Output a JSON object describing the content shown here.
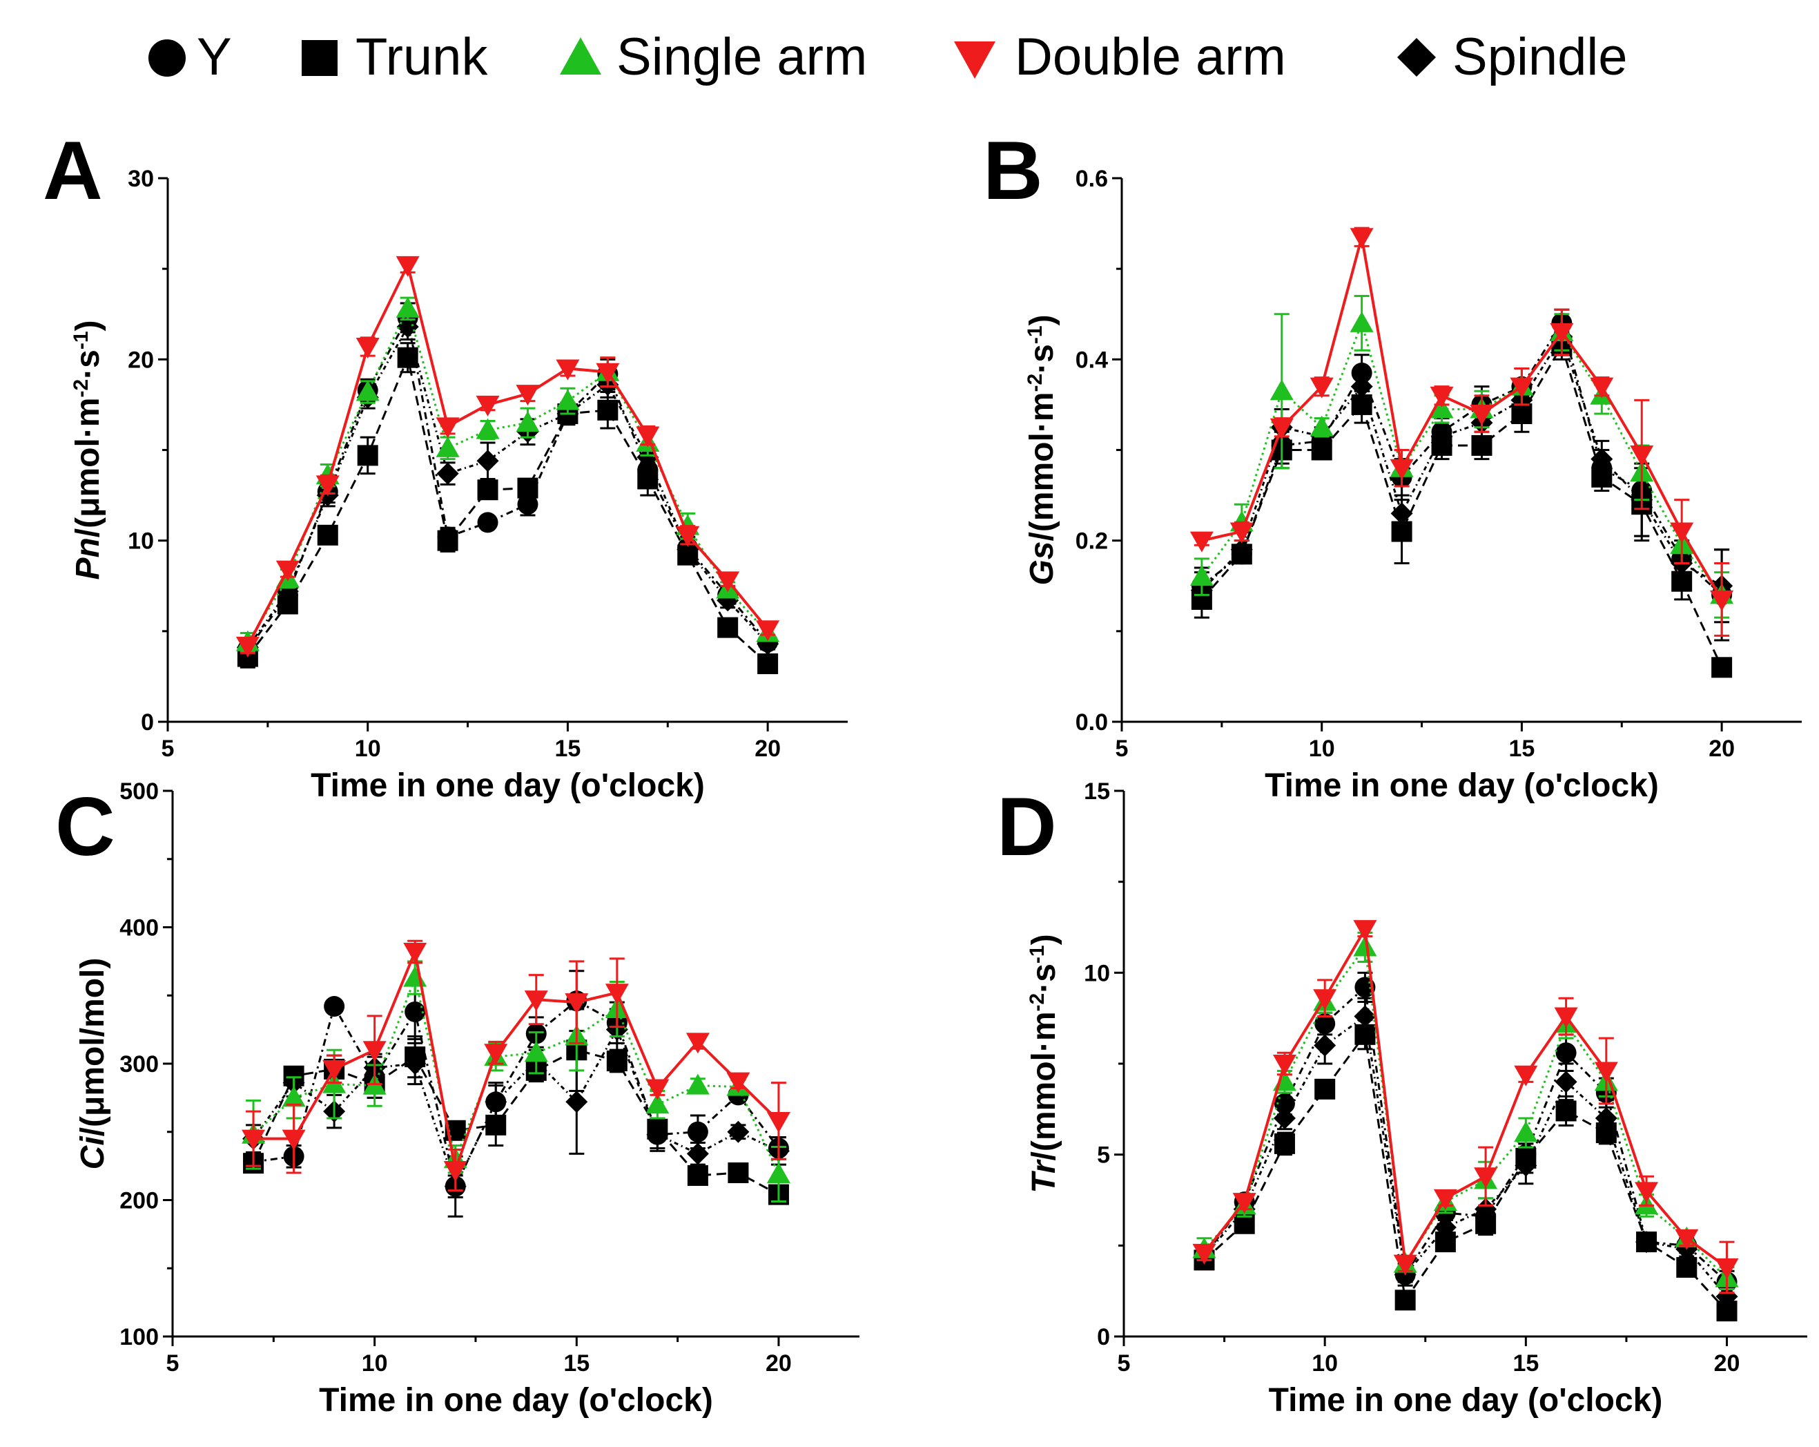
{
  "legend": [
    {
      "label": "Y",
      "marker": "circle",
      "color": "#000000"
    },
    {
      "label": "Trunk",
      "marker": "square",
      "color": "#000000"
    },
    {
      "label": "Single arm",
      "marker": "triangle-up",
      "color": "#1fbf1f"
    },
    {
      "label": "Double arm",
      "marker": "triangle-down",
      "color": "#ee1c1c"
    },
    {
      "label": "Spindle",
      "marker": "diamond",
      "color": "#000000"
    }
  ],
  "chart_data": [
    {
      "panel": "A",
      "type": "line",
      "ylabel_var": "Pn",
      "ylabel_unit": "/(μmol·m",
      "ylabel_exp1": "-2",
      "ylabel_mid": "·s",
      "ylabel_exp2": "-1",
      "ylabel_end": ")",
      "xlabel": "Time in one day (o'clock)",
      "xlim": [
        5,
        22
      ],
      "ylim": [
        0,
        30
      ],
      "xticks": [
        5,
        10,
        15,
        20
      ],
      "xtick_labels": [
        "5",
        "10",
        "15",
        "20"
      ],
      "yticks": [
        0,
        10,
        20,
        30
      ],
      "ytick_labels": [
        "0",
        "10",
        "20",
        "30"
      ],
      "x": [
        7,
        8,
        9,
        10,
        11,
        12,
        13,
        14,
        15,
        16,
        17,
        18,
        19,
        20
      ],
      "series": [
        {
          "name": "Y",
          "values": [
            4.0,
            7.0,
            12.7,
            18.3,
            22.3,
            10.2,
            11.0,
            12.0,
            17.0,
            19.2,
            13.9,
            9.6,
            7.0,
            4.4
          ],
          "errors": [
            0.4,
            0.4,
            0.6,
            0.6,
            0.8,
            0.5,
            0.3,
            0.6,
            0.5,
            0.8,
            0.6,
            0.6,
            0.4,
            0.3
          ]
        },
        {
          "name": "Trunk",
          "values": [
            3.6,
            6.5,
            10.3,
            14.7,
            20.1,
            10.0,
            12.8,
            12.9,
            17.0,
            17.2,
            13.4,
            9.2,
            5.2,
            3.2
          ],
          "errors": [
            0.6,
            0.5,
            0.4,
            1.0,
            0.8,
            0.6,
            0.5,
            0.5,
            0.5,
            1.0,
            0.9,
            0.5,
            0.3,
            0.3
          ]
        },
        {
          "name": "Single arm",
          "values": [
            4.4,
            7.9,
            13.6,
            18.2,
            22.8,
            15.1,
            16.1,
            16.5,
            17.7,
            19.3,
            15.4,
            10.8,
            7.3,
            4.9
          ],
          "errors": [
            0.5,
            0.5,
            0.6,
            0.6,
            0.6,
            0.6,
            0.5,
            0.8,
            0.7,
            0.8,
            0.7,
            0.7,
            0.4,
            0.4
          ]
        },
        {
          "name": "Double arm",
          "values": [
            4.2,
            8.4,
            13.1,
            20.7,
            25.2,
            16.3,
            17.5,
            18.1,
            19.5,
            19.3,
            15.8,
            10.3,
            7.8,
            5.1
          ],
          "errors": [
            0.4,
            0.4,
            0.5,
            0.5,
            0.4,
            0.4,
            0.3,
            0.4,
            0.4,
            0.8,
            0.5,
            0.5,
            0.3,
            0.3
          ]
        },
        {
          "name": "Spindle",
          "values": [
            4.1,
            7.2,
            12.5,
            17.9,
            21.8,
            13.7,
            14.4,
            16.0,
            17.0,
            18.6,
            14.6,
            9.5,
            6.7,
            4.3
          ],
          "errors": [
            0.5,
            0.4,
            0.6,
            0.6,
            0.7,
            0.6,
            1.0,
            0.7,
            0.6,
            0.7,
            0.6,
            0.6,
            0.4,
            0.3
          ]
        }
      ]
    },
    {
      "panel": "B",
      "type": "line",
      "ylabel_var": "Gs",
      "ylabel_unit": "/(mmol·m",
      "ylabel_exp1": "-2",
      "ylabel_mid": "·s",
      "ylabel_exp2": "-1",
      "ylabel_end": ")",
      "xlabel": "Time in one day (o'clock)",
      "xlim": [
        5,
        22
      ],
      "ylim": [
        0,
        0.6
      ],
      "xticks": [
        5,
        10,
        15,
        20
      ],
      "xtick_labels": [
        "5",
        "10",
        "15",
        "20"
      ],
      "yticks": [
        0,
        0.2,
        0.4,
        0.6
      ],
      "ytick_labels": [
        "0.0",
        "0.2",
        "0.4",
        "0.6"
      ],
      "x": [
        7,
        8,
        9,
        10,
        11,
        12,
        13,
        14,
        15,
        16,
        17,
        18,
        19,
        20
      ],
      "series": [
        {
          "name": "Y",
          "values": [
            0.15,
            0.185,
            0.305,
            0.31,
            0.385,
            0.27,
            0.32,
            0.35,
            0.37,
            0.44,
            0.28,
            0.255,
            0.18,
            0.14
          ],
          "errors": [
            0.02,
            0.01,
            0.02,
            0.01,
            0.02,
            0.02,
            0.015,
            0.02,
            0.02,
            0.015,
            0.02,
            0.05,
            0.02,
            0.05
          ]
        },
        {
          "name": "Trunk",
          "values": [
            0.135,
            0.185,
            0.3,
            0.3,
            0.35,
            0.21,
            0.305,
            0.305,
            0.34,
            0.415,
            0.27,
            0.24,
            0.155,
            0.06
          ],
          "errors": [
            0.02,
            0.01,
            0.02,
            0.01,
            0.02,
            0.035,
            0.015,
            0.015,
            0.02,
            0.015,
            0.015,
            0.04,
            0.02,
            0.01
          ]
        },
        {
          "name": "Single arm",
          "values": [
            0.16,
            0.22,
            0.365,
            0.325,
            0.44,
            0.28,
            0.345,
            0.345,
            0.37,
            0.43,
            0.36,
            0.275,
            0.195,
            0.14
          ],
          "errors": [
            0.02,
            0.02,
            0.085,
            0.01,
            0.03,
            0.02,
            0.015,
            0.02,
            0.02,
            0.02,
            0.02,
            0.03,
            0.02,
            0.025
          ]
        },
        {
          "name": "Double arm",
          "values": [
            0.2,
            0.21,
            0.325,
            0.37,
            0.535,
            0.28,
            0.36,
            0.34,
            0.37,
            0.43,
            0.37,
            0.295,
            0.21,
            0.135
          ],
          "errors": [
            0.005,
            0.01,
            0.01,
            0.01,
            0.01,
            0.02,
            0.01,
            0.02,
            0.02,
            0.025,
            0.01,
            0.06,
            0.035,
            0.04
          ]
        },
        {
          "name": "Spindle",
          "values": [
            0.145,
            0.19,
            0.325,
            0.315,
            0.37,
            0.23,
            0.315,
            0.33,
            0.355,
            0.425,
            0.29,
            0.245,
            0.175,
            0.15
          ],
          "errors": [
            0.02,
            0.01,
            0.02,
            0.01,
            0.02,
            0.03,
            0.015,
            0.02,
            0.02,
            0.015,
            0.02,
            0.04,
            0.02,
            0.04
          ]
        }
      ]
    },
    {
      "panel": "C",
      "type": "line",
      "ylabel_var": "Ci",
      "ylabel_unit": "/(μmol/mol)",
      "ylabel_exp1": "",
      "ylabel_mid": "",
      "ylabel_exp2": "",
      "ylabel_end": "",
      "xlabel": "Time in one day (o'clock)",
      "xlim": [
        5,
        22
      ],
      "ylim": [
        100,
        500
      ],
      "xticks": [
        5,
        10,
        15,
        20
      ],
      "xtick_labels": [
        "5",
        "10",
        "15",
        "20"
      ],
      "yticks": [
        100,
        200,
        300,
        400,
        500
      ],
      "ytick_labels": [
        "100",
        "200",
        "300",
        "400",
        "500"
      ],
      "x": [
        7,
        8,
        9,
        10,
        11,
        12,
        13,
        14,
        15,
        16,
        17,
        18,
        19,
        20
      ],
      "series": [
        {
          "name": "Y",
          "values": [
            228,
            232,
            342,
            290,
            338,
            210,
            272,
            322,
            346,
            330,
            248,
            250,
            277,
            238
          ],
          "errors": [
            5,
            8,
            4,
            15,
            20,
            8,
            14,
            12,
            22,
            15,
            12,
            12,
            5,
            8
          ]
        },
        {
          "name": "Trunk",
          "values": [
            227,
            291,
            296,
            285,
            305,
            251,
            255,
            295,
            310,
            302,
            252,
            218,
            220,
            204
          ],
          "errors": [
            5,
            5,
            10,
            10,
            15,
            5,
            15,
            8,
            30,
            8,
            8,
            5,
            6,
            6
          ]
        },
        {
          "name": "Single arm",
          "values": [
            248,
            275,
            285,
            284,
            363,
            230,
            305,
            308,
            320,
            340,
            270,
            284,
            283,
            219
          ],
          "errors": [
            25,
            15,
            25,
            15,
            12,
            10,
            10,
            15,
            25,
            20,
            10,
            5,
            5,
            20
          ]
        },
        {
          "name": "Double arm",
          "values": [
            245,
            245,
            296,
            310,
            382,
            222,
            308,
            347,
            345,
            352,
            282,
            316,
            287,
            258
          ],
          "errors": [
            20,
            25,
            10,
            25,
            8,
            15,
            8,
            18,
            30,
            25,
            5,
            5,
            5,
            28
          ]
        },
        {
          "name": "Spindle",
          "values": [
            245,
            286,
            265,
            297,
            300,
            210,
            272,
            302,
            272,
            325,
            248,
            234,
            250,
            236
          ],
          "errors": [
            10,
            10,
            12,
            10,
            15,
            22,
            12,
            10,
            38,
            15,
            10,
            8,
            5,
            10
          ]
        }
      ]
    },
    {
      "panel": "D",
      "type": "line",
      "ylabel_var": "Tr",
      "ylabel_unit": "/(mmol·m",
      "ylabel_exp1": "-2",
      "ylabel_mid": "·s",
      "ylabel_exp2": "-1",
      "ylabel_end": ")",
      "xlabel": "Time in one day (o'clock)",
      "xlim": [
        5,
        22
      ],
      "ylim": [
        0,
        15
      ],
      "xticks": [
        5,
        10,
        15,
        20
      ],
      "xtick_labels": [
        "5",
        "10",
        "15",
        "20"
      ],
      "yticks": [
        0,
        5,
        10,
        15
      ],
      "ytick_labels": [
        "0",
        "5",
        "10",
        "15"
      ],
      "x": [
        7,
        8,
        9,
        10,
        11,
        12,
        13,
        14,
        15,
        16,
        17,
        18,
        19,
        20
      ],
      "series": [
        {
          "name": "Y",
          "values": [
            2.2,
            3.7,
            6.4,
            8.6,
            9.6,
            1.7,
            3.4,
            3.3,
            5.0,
            7.8,
            6.7,
            2.6,
            2.5,
            1.5
          ],
          "errors": [
            0.2,
            0.2,
            0.3,
            0.3,
            0.4,
            0.3,
            0.2,
            0.3,
            0.3,
            0.5,
            0.4,
            0.2,
            0.2,
            0.3
          ]
        },
        {
          "name": "Trunk",
          "values": [
            2.1,
            3.1,
            5.3,
            6.8,
            8.3,
            1.0,
            2.6,
            3.1,
            4.9,
            6.2,
            5.6,
            2.6,
            1.9,
            0.7
          ],
          "errors": [
            0.2,
            0.2,
            0.3,
            0.2,
            0.4,
            0.2,
            0.2,
            0.3,
            0.4,
            0.4,
            0.3,
            0.2,
            0.2,
            0.2
          ]
        },
        {
          "name": "Single arm",
          "values": [
            2.4,
            3.6,
            7.0,
            9.2,
            10.7,
            2.0,
            3.7,
            4.3,
            5.6,
            8.6,
            7.0,
            3.6,
            2.7,
            1.6
          ],
          "errors": [
            0.3,
            0.3,
            0.3,
            0.3,
            0.4,
            0.2,
            0.3,
            0.5,
            0.4,
            0.4,
            0.4,
            0.3,
            0.2,
            0.3
          ]
        },
        {
          "name": "Double arm",
          "values": [
            2.3,
            3.7,
            7.5,
            9.3,
            11.2,
            2.0,
            3.8,
            4.4,
            7.2,
            8.8,
            7.3,
            4.0,
            2.7,
            1.9
          ],
          "errors": [
            0.2,
            0.2,
            0.3,
            0.5,
            0.2,
            0.2,
            0.2,
            0.8,
            0.2,
            0.5,
            0.9,
            0.4,
            0.2,
            0.7
          ]
        },
        {
          "name": "Spindle",
          "values": [
            2.2,
            3.5,
            6.0,
            8.0,
            8.8,
            1.7,
            3.0,
            3.5,
            4.7,
            7.0,
            6.0,
            2.6,
            2.4,
            1.1
          ],
          "errors": [
            0.2,
            0.2,
            0.3,
            0.5,
            0.5,
            0.2,
            0.3,
            0.3,
            0.5,
            0.5,
            0.5,
            0.2,
            0.2,
            0.3
          ]
        }
      ]
    }
  ]
}
